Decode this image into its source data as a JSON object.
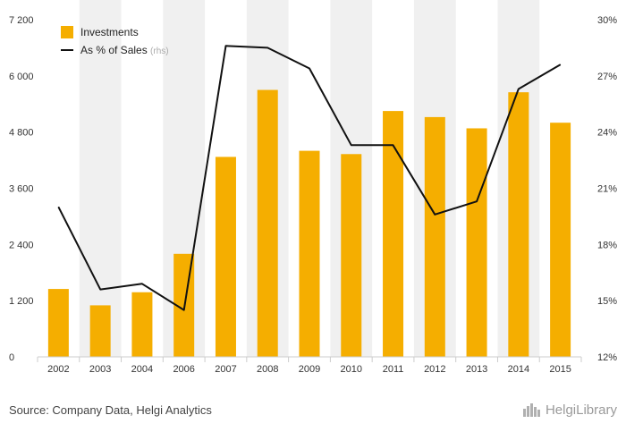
{
  "chart_data": {
    "type": "bar",
    "categories": [
      "2002",
      "2003",
      "2004",
      "2006",
      "2007",
      "2008",
      "2009",
      "2010",
      "2011",
      "2012",
      "2013",
      "2014",
      "2015"
    ],
    "series": [
      {
        "name": "Investments",
        "axis": "left",
        "kind": "bar",
        "values": [
          1450,
          1100,
          1380,
          2200,
          4270,
          5700,
          4400,
          4330,
          5250,
          5120,
          4880,
          5650,
          5000
        ]
      },
      {
        "name": "As % of Sales",
        "name_suffix": "(rhs)",
        "axis": "right",
        "kind": "line",
        "values": [
          20.0,
          15.6,
          15.9,
          14.5,
          28.6,
          28.5,
          27.4,
          23.3,
          23.3,
          19.6,
          20.3,
          26.3,
          27.6
        ]
      }
    ],
    "ylim_left": [
      0,
      7200
    ],
    "ylim_right": [
      12,
      30
    ],
    "yticks_left": [
      "0",
      "1 200",
      "2 400",
      "3 600",
      "4 800",
      "6 000",
      "7 200"
    ],
    "yticks_right": [
      "12%",
      "15%",
      "18%",
      "21%",
      "24%",
      "27%",
      "30%"
    ],
    "grid": false,
    "legend": "top-left",
    "colors": {
      "bar": "#f5ae00",
      "line": "#111111",
      "axis": "#cccccc",
      "band": "#f0f0f0"
    }
  },
  "footer": {
    "source": "Source: Company Data, Helgi Analytics",
    "logo": "HelgiLibrary"
  }
}
